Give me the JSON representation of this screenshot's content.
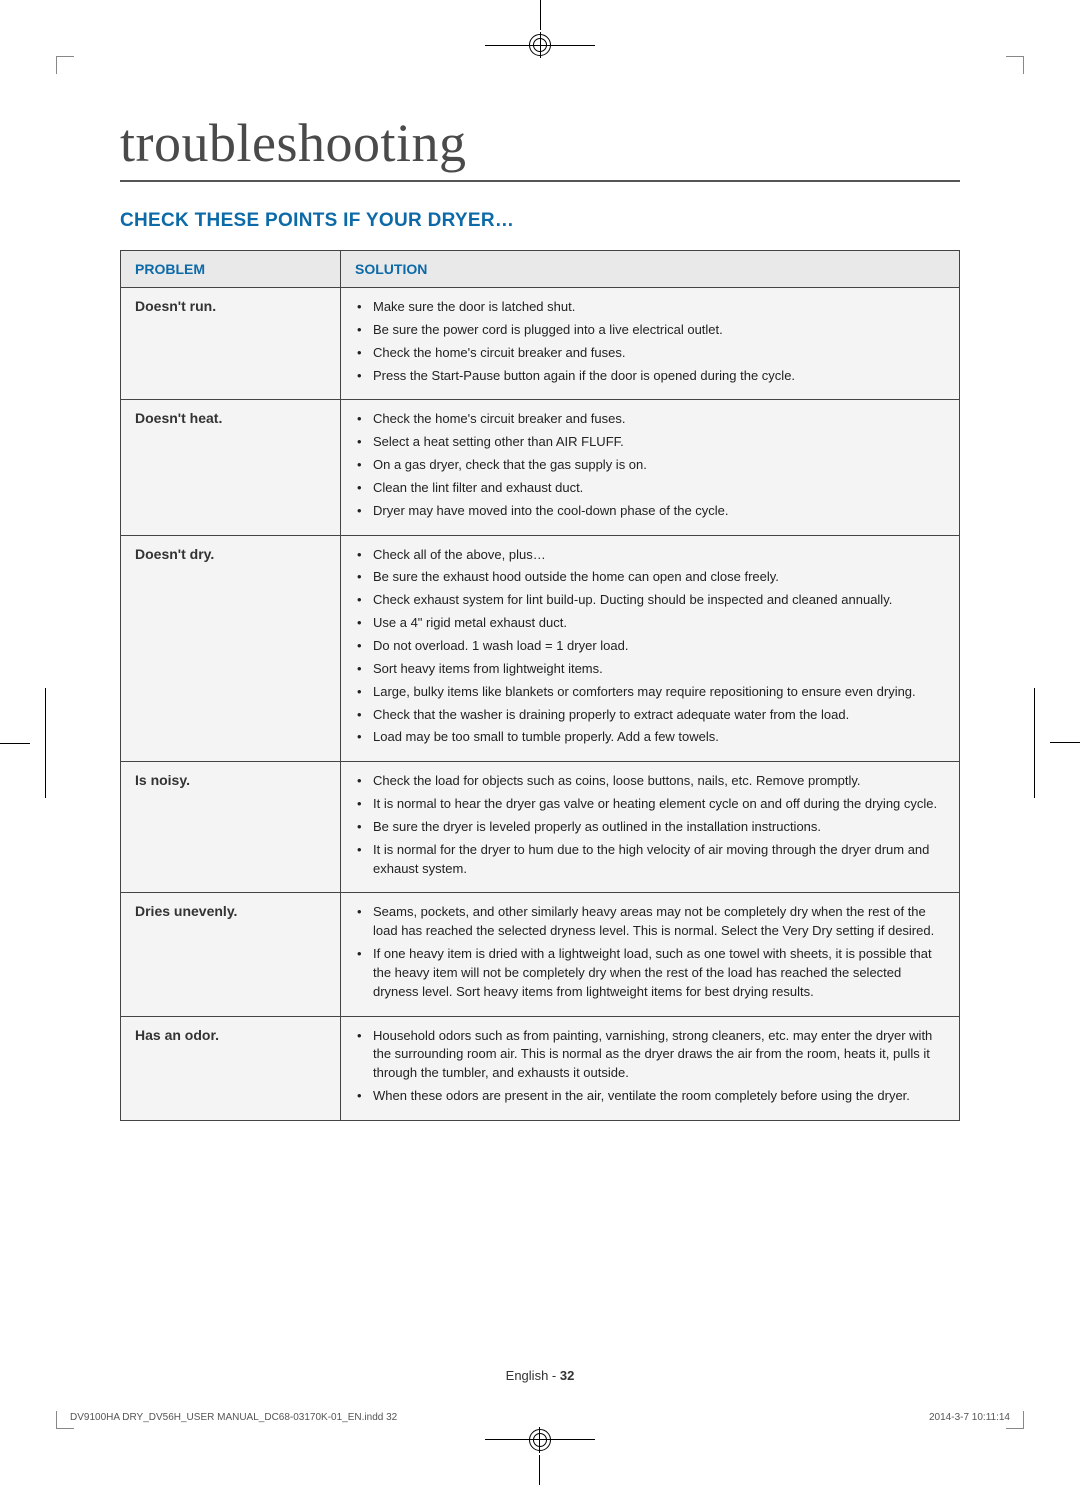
{
  "page_title": "troubleshooting",
  "section_heading": "CHECK THESE POINTS IF YOUR DRYER…",
  "table": {
    "columns": [
      "PROBLEM",
      "SOLUTION"
    ],
    "rows": [
      {
        "problem": "Doesn't run.",
        "solutions": [
          "Make sure the door is latched shut.",
          "Be sure the power cord is plugged into a live electrical outlet.",
          "Check the home's circuit breaker and fuses.",
          "Press the Start-Pause button again if the door is opened during the cycle."
        ]
      },
      {
        "problem": "Doesn't heat.",
        "solutions": [
          "Check the home's circuit breaker and fuses.",
          "Select a heat setting other than AIR FLUFF.",
          "On a gas dryer, check that the gas supply is on.",
          "Clean the lint filter and exhaust duct.",
          "Dryer may have moved into the cool-down phase of the cycle."
        ]
      },
      {
        "problem": "Doesn't dry.",
        "solutions": [
          "Check all of the above, plus…",
          "Be sure the exhaust hood outside the home can open and close freely.",
          "Check exhaust system for lint build-up. Ducting should be inspected and cleaned annually.",
          "Use a 4\" rigid metal exhaust duct.",
          "Do not overload. 1 wash load = 1 dryer load.",
          "Sort heavy items from lightweight items.",
          "Large, bulky items like blankets or comforters may require repositioning to ensure even drying.",
          "Check that the washer is draining properly to extract adequate water from the load.",
          "Load may be too small to tumble properly. Add a few towels."
        ]
      },
      {
        "problem": "Is noisy.",
        "solutions": [
          "Check the load for objects such as coins, loose buttons, nails, etc. Remove promptly.",
          "It is normal to hear the dryer gas valve or heating element cycle on and off during the drying cycle.",
          "Be sure the dryer is leveled properly as outlined in the installation instructions.",
          "It is normal for the dryer to hum due to the high velocity of air moving through the dryer drum and exhaust system."
        ]
      },
      {
        "problem": "Dries unevenly.",
        "solutions": [
          "Seams, pockets, and other similarly heavy areas may not be completely dry when the rest of the load has reached the selected dryness level. This is normal. Select the Very Dry setting if desired.",
          "If one heavy item is dried with a lightweight load, such as one towel with sheets, it is possible that the heavy item will not be completely dry when the rest of the load has reached the selected dryness level. Sort heavy items from lightweight items for best drying results."
        ]
      },
      {
        "problem": "Has an odor.",
        "solutions": [
          "Household odors such as from painting, varnishing, strong cleaners, etc. may enter the dryer with the surrounding room air. This is normal as the dryer draws the air from the room, heats it, pulls it through the tumbler, and exhausts it outside.",
          "When these odors are present in the air, ventilate the room completely before using the dryer."
        ]
      }
    ]
  },
  "footer": {
    "lang": "English - ",
    "page_number": "32",
    "doc_id": "DV9100HA DRY_DV56H_USER MANUAL_DC68-03170K-01_EN.indd   32",
    "timestamp": "2014-3-7   10:11:14"
  },
  "colors": {
    "heading_blue": "#0d6aa8",
    "row_bg": "#f4f4f4",
    "header_bg": "#e9e9e9",
    "border": "#444444",
    "title_gray": "#4a4a4a"
  }
}
